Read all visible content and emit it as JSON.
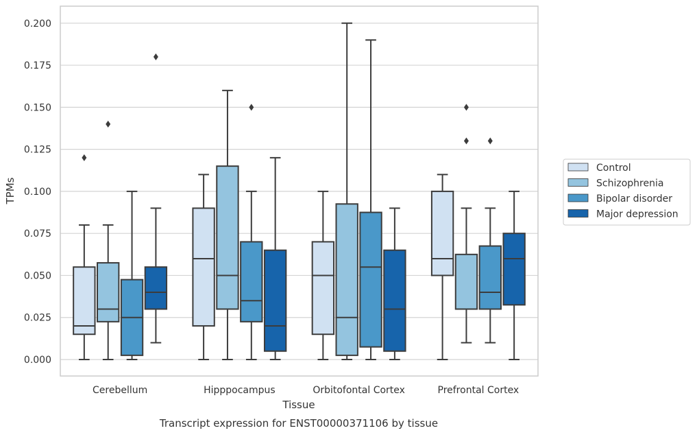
{
  "chart_data": {
    "type": "box",
    "title": "",
    "caption": "Transcript expression for ENST00000371106 by tissue",
    "xlabel": "Tissue",
    "ylabel": "TPMs",
    "ylim": [
      -0.01,
      0.21
    ],
    "yticks": [
      0.0,
      0.025,
      0.05,
      0.075,
      0.1,
      0.125,
      0.15,
      0.175,
      0.2
    ],
    "ytick_labels": [
      "0.000",
      "0.025",
      "0.050",
      "0.075",
      "0.100",
      "0.125",
      "0.150",
      "0.175",
      "0.200"
    ],
    "grid": "horizontal",
    "legend_position": "right",
    "categories": [
      "Cerebellum",
      "Hipppocampus",
      "Orbitofontal Cortex",
      "Prefrontal Cortex"
    ],
    "series": [
      {
        "name": "Control",
        "color": "#d0e1f2",
        "boxes": [
          {
            "whislo": 0.0,
            "q1": 0.015,
            "med": 0.02,
            "q3": 0.055,
            "whishi": 0.08,
            "fliers": [
              0.12
            ]
          },
          {
            "whislo": 0.0,
            "q1": 0.02,
            "med": 0.06,
            "q3": 0.09,
            "whishi": 0.11,
            "fliers": []
          },
          {
            "whislo": 0.0,
            "q1": 0.015,
            "med": 0.05,
            "q3": 0.07,
            "whishi": 0.1,
            "fliers": []
          },
          {
            "whislo": 0.0,
            "q1": 0.05,
            "med": 0.06,
            "q3": 0.1,
            "whishi": 0.11,
            "fliers": []
          }
        ]
      },
      {
        "name": "Schizophrenia",
        "color": "#94c4df",
        "boxes": [
          {
            "whislo": 0.0,
            "q1": 0.0225,
            "med": 0.03,
            "q3": 0.0575,
            "whishi": 0.08,
            "fliers": [
              0.14
            ]
          },
          {
            "whislo": 0.0,
            "q1": 0.03,
            "med": 0.05,
            "q3": 0.115,
            "whishi": 0.16,
            "fliers": []
          },
          {
            "whislo": 0.0,
            "q1": 0.0025,
            "med": 0.025,
            "q3": 0.0925,
            "whishi": 0.2,
            "fliers": []
          },
          {
            "whislo": 0.01,
            "q1": 0.03,
            "med": 0.03,
            "q3": 0.0625,
            "whishi": 0.09,
            "fliers": [
              0.15,
              0.13
            ]
          }
        ]
      },
      {
        "name": "Bipolar disorder",
        "color": "#4a98c9",
        "boxes": [
          {
            "whislo": 0.0,
            "q1": 0.0025,
            "med": 0.025,
            "q3": 0.0475,
            "whishi": 0.1,
            "fliers": []
          },
          {
            "whislo": 0.0,
            "q1": 0.0225,
            "med": 0.035,
            "q3": 0.07,
            "whishi": 0.1,
            "fliers": [
              0.15
            ]
          },
          {
            "whislo": 0.0,
            "q1": 0.0075,
            "med": 0.055,
            "q3": 0.0875,
            "whishi": 0.19,
            "fliers": []
          },
          {
            "whislo": 0.01,
            "q1": 0.03,
            "med": 0.04,
            "q3": 0.0675,
            "whishi": 0.09,
            "fliers": [
              0.13
            ]
          }
        ]
      },
      {
        "name": "Major depression",
        "color": "#1764ab",
        "boxes": [
          {
            "whislo": 0.01,
            "q1": 0.03,
            "med": 0.04,
            "q3": 0.055,
            "whishi": 0.09,
            "fliers": [
              0.18
            ]
          },
          {
            "whislo": 0.0,
            "q1": 0.005,
            "med": 0.02,
            "q3": 0.065,
            "whishi": 0.12,
            "fliers": []
          },
          {
            "whislo": 0.0,
            "q1": 0.005,
            "med": 0.03,
            "q3": 0.065,
            "whishi": 0.09,
            "fliers": []
          },
          {
            "whislo": 0.0,
            "q1": 0.0325,
            "med": 0.06,
            "q3": 0.075,
            "whishi": 0.1,
            "fliers": []
          }
        ]
      }
    ]
  }
}
